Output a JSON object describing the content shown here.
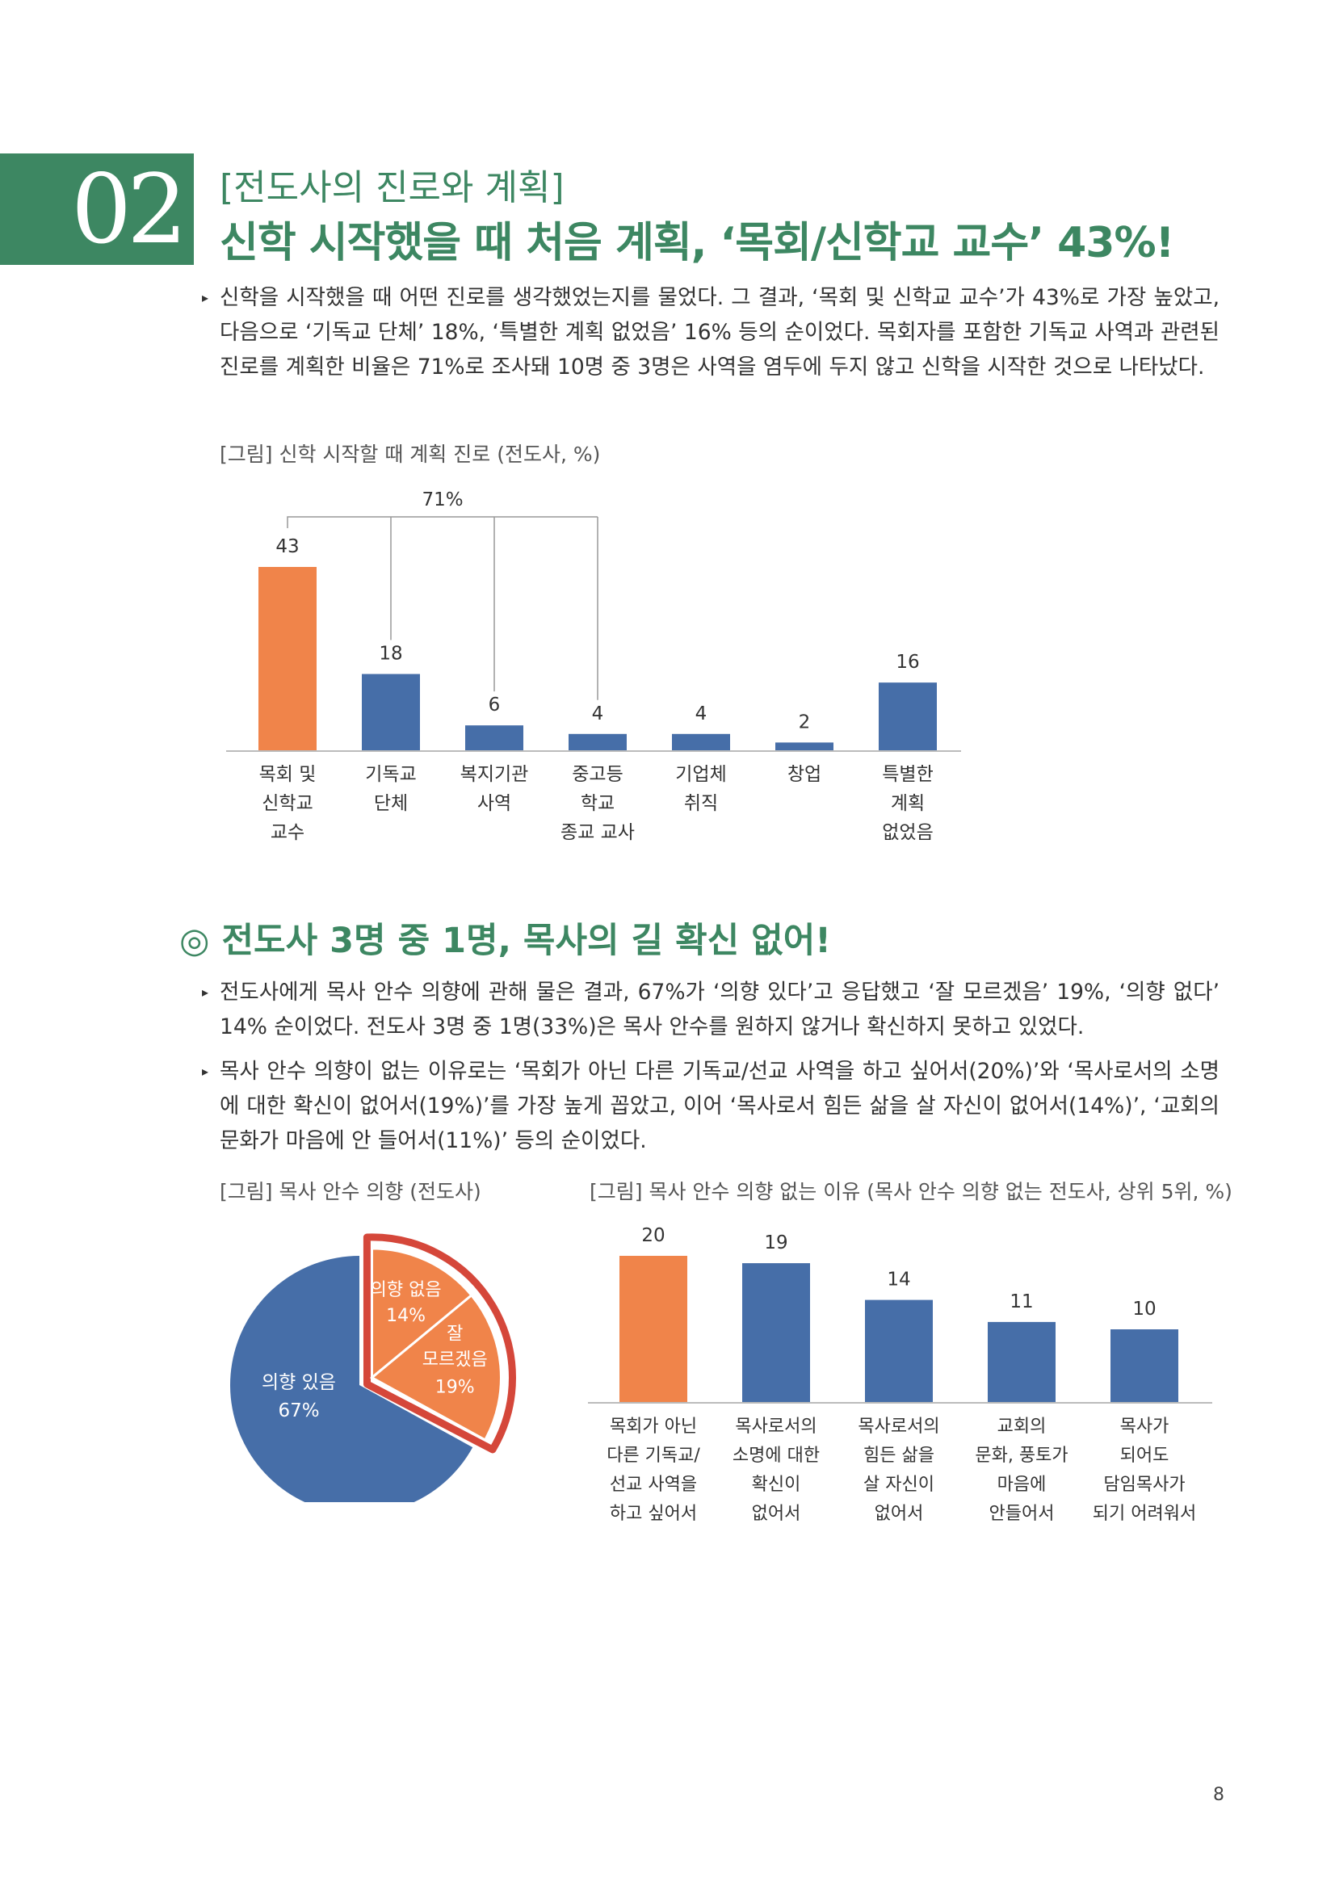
{
  "section": {
    "number": "02",
    "label": "[전도사의 진로와 계획]",
    "headline": "신학 시작했을 때 처음 계획, ‘목회/신학교 교수’ 43%!"
  },
  "para1": "신학을 시작했을 때 어떤 진로를 생각했었는지를 물었다. 그 결과, ‘목회 및 신학교 교수’가 43%로 가장 높았고, 다음으로 ‘기독교 단체’ 18%, ‘특별한 계획 없었음’ 16% 등의 순이었다. 목회자를 포함한 기독교 사역과 관련된 진로를 계획한 비율은 71%로 조사돼 10명 중 3명은 사역을 염두에 두지 않고 신학을 시작한 것으로 나타났다.",
  "subhead": "◎ 전도사 3명 중 1명, 목사의 길 확신 없어!",
  "para2": "전도사에게 목사 안수 의향에 관해 물은 결과, 67%가 ‘의향 있다’고 응답했고 ‘잘 모르겠음’ 19%, ‘의향 없다’ 14% 순이었다. 전도사 3명 중 1명(33%)은 목사 안수를 원하지 않거나 확신하지 못하고 있었다.",
  "para3": "목사 안수 의향이 없는 이유로는 ‘목회가 아닌 다른 기독교/선교 사역을 하고 싶어서(20%)’와 ‘목사로서의 소명에 대한 확신이 없어서(19%)’를 가장 높게 꼽았고, 이어 ‘목사로서 힘든 삶을 살 자신이 없어서(14%)’, ‘교회의 문화가 마음에 안 들어서(11%)’ 등의 순이었다.",
  "page_number": "8",
  "colors": {
    "green": "#3d8762",
    "orange": "#f0844a",
    "blue": "#466ea8",
    "red": "#d5473a"
  },
  "chart_data": [
    {
      "type": "bar",
      "title": "[그림] 신학 시작할 때 계획 진로 (전도사, %)",
      "categories": [
        [
          "목회 및",
          "신학교",
          "교수"
        ],
        [
          "기독교",
          "단체"
        ],
        [
          "복지기관",
          "사역"
        ],
        [
          "중고등",
          "학교",
          "종교 교사"
        ],
        [
          "기업체",
          "취직"
        ],
        [
          "창업"
        ],
        [
          "특별한",
          "계획",
          "없었음"
        ]
      ],
      "values": [
        43,
        18,
        6,
        4,
        4,
        2,
        16
      ],
      "data_labels": [
        "43",
        "18",
        "6",
        "4",
        "4",
        "2",
        "16"
      ],
      "highlight_index": 0,
      "bracket_label": "71%",
      "bracket_covers": [
        0,
        1,
        2,
        3
      ],
      "ylim": [
        0,
        43
      ]
    },
    {
      "type": "pie",
      "title": "[그림] 목사 안수 의향 (전도사)",
      "slices": [
        {
          "label": "의향 있음",
          "pct_label": "67%",
          "value": 67
        },
        {
          "label": "의향 없음",
          "pct_label": "14%",
          "value": 14,
          "exploded": true
        },
        {
          "label": "잘 모르겠음",
          "label_lines": [
            "잘",
            "모르겠음"
          ],
          "pct_label": "19%",
          "value": 19,
          "exploded": true
        }
      ]
    },
    {
      "type": "bar",
      "title": "[그림] 목사 안수 의향 없는 이유 (목사 안수 의향 없는 전도사, 상위 5위, %)",
      "categories": [
        [
          "목회가 아닌",
          "다른 기독교/",
          "선교 사역을",
          "하고 싶어서"
        ],
        [
          "목사로서의",
          "소명에 대한",
          "확신이",
          "없어서"
        ],
        [
          "목사로서의",
          "힘든 삶을",
          "살 자신이",
          "없어서"
        ],
        [
          "교회의",
          "문화, 풍토가",
          "마음에",
          "안들어서"
        ],
        [
          "목사가",
          "되어도",
          "담임목사가",
          "되기 어려워서"
        ]
      ],
      "values": [
        20,
        19,
        14,
        11,
        10
      ],
      "data_labels": [
        "20",
        "19",
        "14",
        "11",
        "10"
      ],
      "highlight_index": 0,
      "ylim": [
        0,
        20
      ]
    }
  ]
}
